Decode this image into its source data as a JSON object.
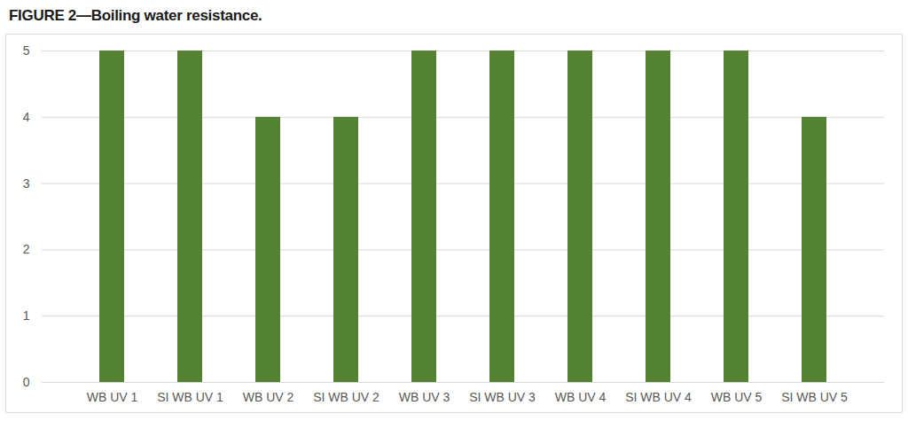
{
  "chart_data": {
    "type": "bar",
    "title": "FIGURE 2—Boiling water resistance.",
    "categories": [
      "WB UV 1",
      "SI WB UV 1",
      "WB UV 2",
      "SI WB UV 2",
      "WB UV 3",
      "SI WB UV 3",
      "WB UV 4",
      "SI WB UV 4",
      "WB UV 5",
      "SI WB UV 5"
    ],
    "values": [
      5,
      5,
      4,
      4,
      5,
      5,
      5,
      5,
      5,
      4
    ],
    "color": "#548235",
    "ylim": [
      0,
      5
    ],
    "yticks": [
      0,
      1,
      2,
      3,
      4,
      5
    ],
    "grid": true
  }
}
